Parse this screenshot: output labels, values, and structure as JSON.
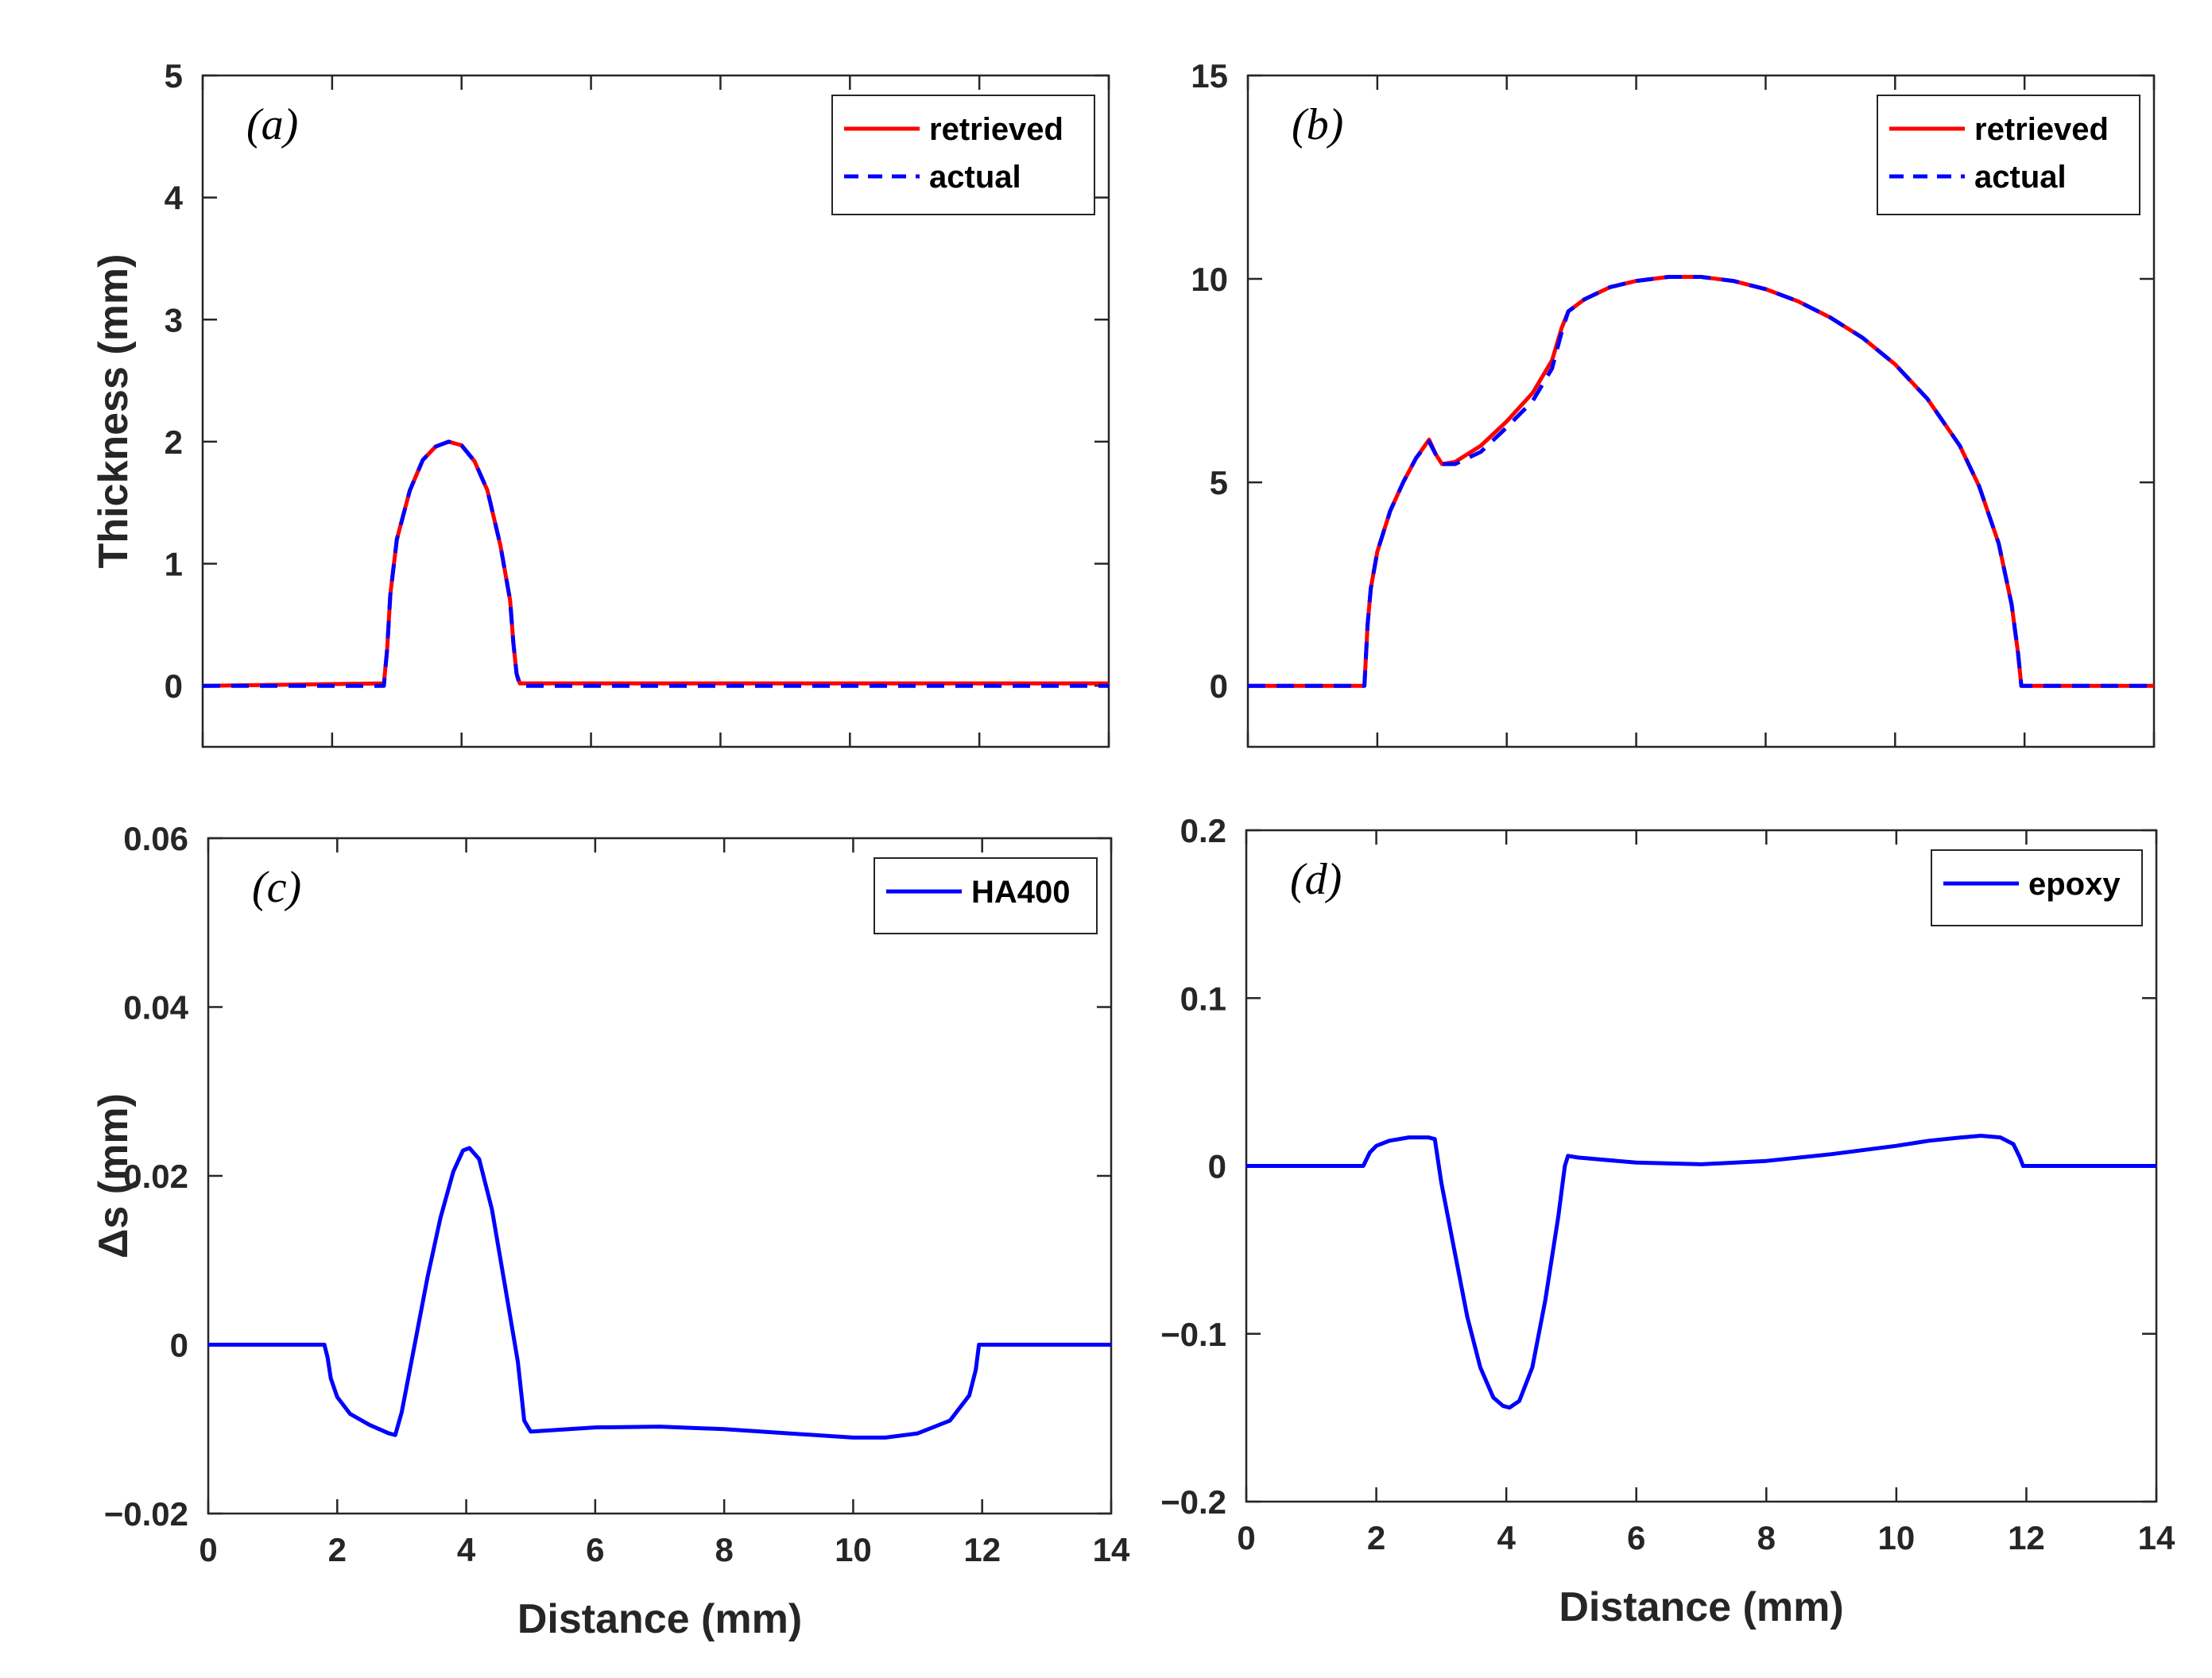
{
  "chart_data": [
    {
      "id": "a",
      "type": "line",
      "panel_label": "(a)",
      "xlim": [
        0,
        14
      ],
      "ylim": [
        -0.5,
        5
      ],
      "xticks": [
        0,
        2,
        4,
        6,
        8,
        10,
        12,
        14
      ],
      "yticks": [
        0,
        1,
        2,
        3,
        4,
        5
      ],
      "xlabel": "",
      "ylabel": "Thickness (mm)",
      "legend_position": "top-right",
      "series": [
        {
          "name": "retrieved",
          "color": "#ff0000",
          "style": "solid",
          "x": [
            0,
            2.8,
            2.85,
            2.9,
            3.0,
            3.2,
            3.4,
            3.6,
            3.8,
            4.0,
            4.2,
            4.4,
            4.6,
            4.75,
            4.8,
            4.85,
            4.9,
            14
          ],
          "y": [
            0,
            0.02,
            0.3,
            0.75,
            1.2,
            1.6,
            1.85,
            1.96,
            2.0,
            1.97,
            1.84,
            1.6,
            1.15,
            0.7,
            0.35,
            0.1,
            0.02,
            0.02
          ]
        },
        {
          "name": "actual",
          "color": "#0000ff",
          "style": "dashed",
          "x": [
            0,
            2.8,
            2.85,
            2.9,
            3.0,
            3.2,
            3.4,
            3.6,
            3.8,
            4.0,
            4.2,
            4.4,
            4.6,
            4.75,
            4.8,
            4.85,
            4.9,
            14
          ],
          "y": [
            0,
            0,
            0.3,
            0.75,
            1.2,
            1.6,
            1.85,
            1.96,
            2.0,
            1.97,
            1.84,
            1.6,
            1.15,
            0.7,
            0.35,
            0.1,
            0,
            0
          ]
        }
      ]
    },
    {
      "id": "b",
      "type": "line",
      "panel_label": "(b)",
      "xlim": [
        0,
        14
      ],
      "ylim": [
        -1.5,
        15
      ],
      "xticks": [
        0,
        2,
        4,
        6,
        8,
        10,
        12,
        14
      ],
      "yticks": [
        0,
        5,
        10,
        15
      ],
      "xlabel": "",
      "ylabel": "",
      "legend_position": "top-right",
      "series": [
        {
          "name": "retrieved",
          "color": "#ff0000",
          "style": "solid",
          "x": [
            0,
            1.8,
            1.85,
            1.9,
            2.0,
            2.2,
            2.4,
            2.6,
            2.8,
            2.9,
            3.0,
            3.2,
            3.6,
            4.0,
            4.4,
            4.7,
            4.85,
            4.95,
            5.2,
            5.6,
            6.0,
            6.5,
            7.0,
            7.5,
            8.0,
            8.5,
            9.0,
            9.5,
            10.0,
            10.5,
            11.0,
            11.3,
            11.6,
            11.8,
            11.9,
            11.95,
            14
          ],
          "y": [
            0,
            0,
            1.5,
            2.4,
            3.3,
            4.3,
            5.0,
            5.6,
            6.05,
            5.7,
            5.45,
            5.5,
            5.9,
            6.5,
            7.2,
            8.0,
            8.8,
            9.2,
            9.5,
            9.8,
            9.95,
            10.05,
            10.05,
            9.95,
            9.75,
            9.45,
            9.05,
            8.55,
            7.9,
            7.05,
            5.9,
            4.9,
            3.5,
            2.0,
            0.8,
            0,
            0
          ]
        },
        {
          "name": "actual",
          "color": "#0000ff",
          "style": "dashed",
          "x": [
            0,
            1.8,
            1.85,
            1.9,
            2.0,
            2.2,
            2.4,
            2.6,
            2.8,
            2.9,
            3.0,
            3.2,
            3.6,
            4.0,
            4.4,
            4.7,
            4.85,
            4.95,
            5.2,
            5.6,
            6.0,
            6.5,
            7.0,
            7.5,
            8.0,
            8.5,
            9.0,
            9.5,
            10.0,
            10.5,
            11.0,
            11.3,
            11.6,
            11.8,
            11.9,
            11.95,
            14
          ],
          "y": [
            0,
            0,
            1.5,
            2.4,
            3.3,
            4.3,
            5.0,
            5.6,
            6.0,
            5.7,
            5.45,
            5.45,
            5.75,
            6.35,
            7.0,
            7.8,
            8.7,
            9.2,
            9.5,
            9.8,
            9.95,
            10.05,
            10.05,
            9.95,
            9.75,
            9.45,
            9.05,
            8.55,
            7.9,
            7.05,
            5.9,
            4.9,
            3.5,
            2.0,
            0.8,
            0,
            0
          ]
        }
      ]
    },
    {
      "id": "c",
      "type": "line",
      "panel_label": "(c)",
      "xlim": [
        0,
        14
      ],
      "ylim": [
        -0.02,
        0.06
      ],
      "xticks": [
        0,
        2,
        4,
        6,
        8,
        10,
        12,
        14
      ],
      "xtick_labels": [
        "0",
        "2",
        "4",
        "6",
        "8",
        "10",
        "12",
        "14"
      ],
      "yticks": [
        -0.02,
        0,
        0.02,
        0.04,
        0.06
      ],
      "ytick_labels": [
        "−0.02",
        "0",
        "0.02",
        "0.04",
        "0.06"
      ],
      "xlabel": "Distance (mm)",
      "ylabel": "Δs (mm)",
      "legend_position": "top-right",
      "series": [
        {
          "name": "HA400",
          "color": "#0000ff",
          "style": "solid",
          "x": [
            0,
            1.8,
            1.85,
            1.9,
            2.0,
            2.2,
            2.5,
            2.8,
            2.9,
            3.0,
            3.2,
            3.4,
            3.6,
            3.8,
            3.95,
            4.05,
            4.2,
            4.4,
            4.6,
            4.8,
            4.9,
            5.0,
            6.0,
            7.0,
            8.0,
            9.0,
            10.0,
            10.5,
            11.0,
            11.5,
            11.8,
            11.9,
            11.95,
            14
          ],
          "y": [
            0,
            0,
            -0.0015,
            -0.004,
            -0.0062,
            -0.0082,
            -0.0095,
            -0.0105,
            -0.0107,
            -0.008,
            0.0,
            0.008,
            0.015,
            0.0205,
            0.023,
            0.0233,
            0.022,
            0.016,
            0.007,
            -0.002,
            -0.009,
            -0.0103,
            -0.0098,
            -0.0097,
            -0.01,
            -0.0105,
            -0.011,
            -0.011,
            -0.0105,
            -0.009,
            -0.006,
            -0.003,
            0,
            0
          ]
        }
      ]
    },
    {
      "id": "d",
      "type": "line",
      "panel_label": "(d)",
      "xlim": [
        0,
        14
      ],
      "ylim": [
        -0.2,
        0.2
      ],
      "xticks": [
        0,
        2,
        4,
        6,
        8,
        10,
        12,
        14
      ],
      "xtick_labels": [
        "0",
        "2",
        "4",
        "6",
        "8",
        "10",
        "12",
        "14"
      ],
      "yticks": [
        -0.2,
        -0.1,
        0,
        0.1,
        0.2
      ],
      "ytick_labels": [
        "−0.2",
        "−0.1",
        "0",
        "0.1",
        "0.2"
      ],
      "xlabel": "Distance (mm)",
      "ylabel": "",
      "legend_position": "top-right",
      "series": [
        {
          "name": "epoxy",
          "color": "#0000ff",
          "style": "solid",
          "x": [
            0,
            1.8,
            1.9,
            2.0,
            2.2,
            2.5,
            2.8,
            2.9,
            3.0,
            3.2,
            3.4,
            3.6,
            3.8,
            3.95,
            4.05,
            4.2,
            4.4,
            4.6,
            4.8,
            4.9,
            4.95,
            5.1,
            6.0,
            7.0,
            8.0,
            9.0,
            10.0,
            10.5,
            11.0,
            11.3,
            11.6,
            11.8,
            11.9,
            11.95,
            14
          ],
          "y": [
            0,
            0,
            0.008,
            0.012,
            0.015,
            0.017,
            0.017,
            0.016,
            -0.01,
            -0.05,
            -0.09,
            -0.12,
            -0.138,
            -0.143,
            -0.144,
            -0.14,
            -0.12,
            -0.08,
            -0.03,
            0.0,
            0.006,
            0.005,
            0.002,
            0.001,
            0.003,
            0.007,
            0.012,
            0.015,
            0.017,
            0.018,
            0.017,
            0.013,
            0.005,
            0,
            0
          ]
        }
      ]
    }
  ]
}
